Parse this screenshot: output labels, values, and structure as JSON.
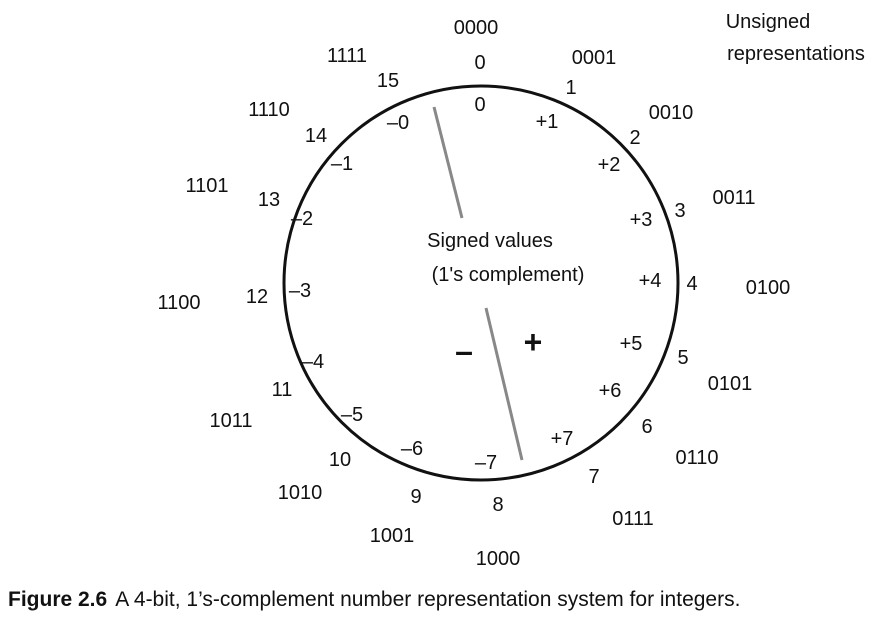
{
  "legend": [
    "Unsigned",
    "representations"
  ],
  "center_label": [
    "Signed values",
    "(1's complement)"
  ],
  "minus_symbol": "–",
  "plus_symbol": "+",
  "values": [
    {
      "binary": "0000",
      "unsigned": "0",
      "signed": "0"
    },
    {
      "binary": "0001",
      "unsigned": "1",
      "signed": "+1"
    },
    {
      "binary": "0010",
      "unsigned": "2",
      "signed": "+2"
    },
    {
      "binary": "0011",
      "unsigned": "3",
      "signed": "+3"
    },
    {
      "binary": "0100",
      "unsigned": "4",
      "signed": "+4"
    },
    {
      "binary": "0101",
      "unsigned": "5",
      "signed": "+5"
    },
    {
      "binary": "0110",
      "unsigned": "6",
      "signed": "+6"
    },
    {
      "binary": "0111",
      "unsigned": "7",
      "signed": "+7"
    },
    {
      "binary": "1000",
      "unsigned": "8",
      "signed": "–7"
    },
    {
      "binary": "1001",
      "unsigned": "9",
      "signed": "–6"
    },
    {
      "binary": "1010",
      "unsigned": "10",
      "signed": "–5"
    },
    {
      "binary": "1011",
      "unsigned": "11",
      "signed": "–4"
    },
    {
      "binary": "1100",
      "unsigned": "12",
      "signed": "–3"
    },
    {
      "binary": "1101",
      "unsigned": "13",
      "signed": "–2"
    },
    {
      "binary": "1110",
      "unsigned": "14",
      "signed": "–1"
    },
    {
      "binary": "1111",
      "unsigned": "15",
      "signed": "–0"
    }
  ],
  "caption": {
    "label": "Figure 2.6",
    "text": "A 4-bit, 1’s-complement number representation system for integers."
  }
}
